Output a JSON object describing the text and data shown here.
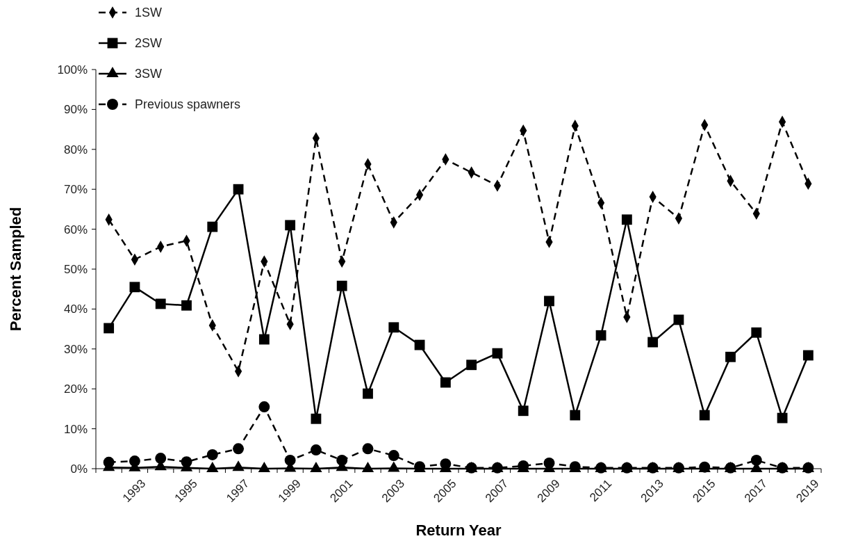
{
  "chart_data": {
    "type": "line",
    "xlabel": "Return Year",
    "ylabel": "Percent Sampled",
    "categories": [
      null,
      "1993",
      null,
      "1995",
      null,
      "1997",
      null,
      "1999",
      null,
      "2001",
      null,
      "2003",
      null,
      "2005",
      null,
      "2007",
      null,
      "2009",
      null,
      "2011",
      null,
      "2013",
      null,
      "2015",
      null,
      "2017",
      null,
      "2019"
    ],
    "ylim": [
      0,
      100
    ],
    "yticks": [
      {
        "value": 0,
        "label": "0%"
      },
      {
        "value": 10,
        "label": "10%"
      },
      {
        "value": 20,
        "label": "20%"
      },
      {
        "value": 30,
        "label": "30%"
      },
      {
        "value": 40,
        "label": "40%"
      },
      {
        "value": 50,
        "label": "50%"
      },
      {
        "value": 60,
        "label": "60%"
      },
      {
        "value": 70,
        "label": "70%"
      },
      {
        "value": 80,
        "label": "80%"
      },
      {
        "value": 90,
        "label": "90%"
      },
      {
        "value": 100,
        "label": "100%"
      }
    ],
    "grid": false,
    "legend": "top left",
    "series": [
      {
        "name": "1SW",
        "color": "#000000",
        "marker": "diamond",
        "line_style": "dashed",
        "values": [
          62.4,
          52.4,
          55.6,
          57.1,
          35.9,
          24.4,
          51.9,
          36.2,
          82.8,
          51.9,
          76.3,
          61.7,
          68.6,
          77.5,
          74.2,
          70.9,
          84.7,
          56.8,
          85.9,
          66.6,
          38.0,
          68.1,
          62.7,
          86.1,
          72.1,
          63.9,
          86.9,
          71.4
        ]
      },
      {
        "name": "2SW",
        "color": "#000000",
        "marker": "square",
        "line_style": "solid",
        "values": [
          35.2,
          45.5,
          41.3,
          40.9,
          60.6,
          70.0,
          32.4,
          61.0,
          12.5,
          45.8,
          18.8,
          35.4,
          31.0,
          21.6,
          26.0,
          28.9,
          14.5,
          42.0,
          13.4,
          33.4,
          62.4,
          31.7,
          37.3,
          13.4,
          28.0,
          34.1,
          12.7,
          28.4
        ]
      },
      {
        "name": "3SW",
        "color": "#000000",
        "marker": "triangle",
        "line_style": "solid",
        "values": [
          0.3,
          0.2,
          0.5,
          0.2,
          0,
          0.3,
          0,
          0.1,
          0,
          0.3,
          0,
          0.1,
          0,
          0,
          0,
          0,
          0,
          0,
          0,
          0,
          0,
          0,
          0,
          0,
          0,
          0,
          0,
          0
        ]
      },
      {
        "name": "Previous spawners",
        "color": "#000000",
        "marker": "circle",
        "line_style": "dashed",
        "values": [
          1.6,
          1.9,
          2.6,
          1.7,
          3.5,
          5.0,
          15.5,
          2.1,
          4.7,
          2.1,
          5.0,
          3.3,
          0.5,
          1.2,
          0.2,
          0.2,
          0.7,
          1.4,
          0.5,
          0.2,
          0.2,
          0.2,
          0.2,
          0.4,
          0.2,
          2.1,
          0.2,
          0.2
        ]
      }
    ]
  }
}
